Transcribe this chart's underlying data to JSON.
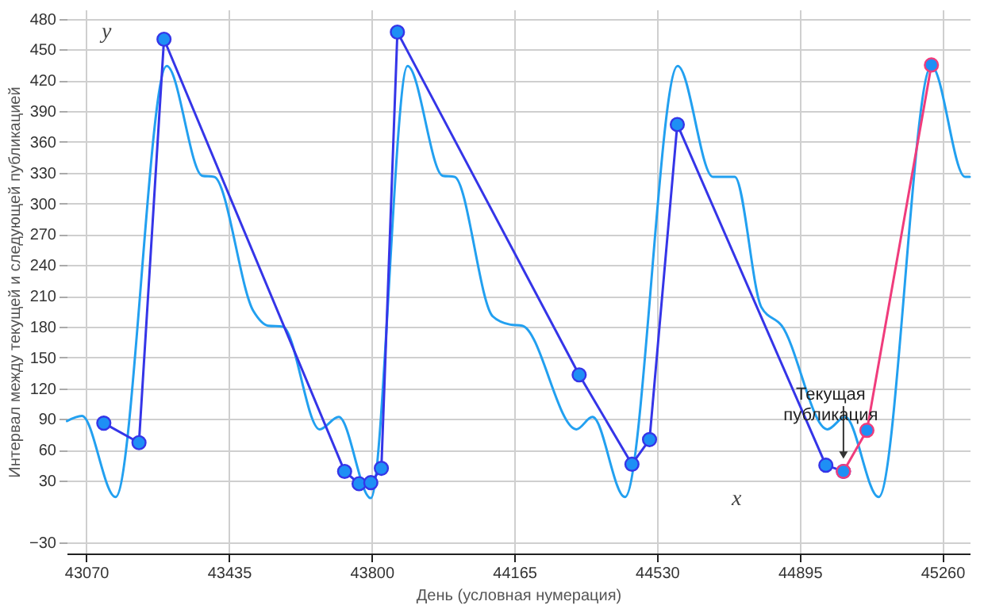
{
  "chart_data": {
    "type": "line",
    "xlabel": "День (условная нумерация)",
    "ylabel": "Интервал между текущей и следующей публикацией",
    "xlim": [
      43020,
      45330
    ],
    "ylim": [
      -41,
      489
    ],
    "xticks": [
      43070,
      43435,
      43800,
      44165,
      44530,
      44895,
      45260
    ],
    "yticks": [
      -30,
      30,
      60,
      90,
      120,
      150,
      180,
      210,
      240,
      270,
      300,
      330,
      360,
      390,
      420,
      450,
      480
    ],
    "grid": true,
    "annotations": [
      "y",
      "x",
      {
        "text": "Текущая публикация",
        "x": 45007,
        "y": 39
      }
    ],
    "series": [
      {
        "color": "#22a0f0",
        "marker": "none",
        "x": [
          43021,
          43059,
          43145,
          43276,
          43367,
          43397,
          43498,
          43535,
          43573,
          43667,
          43716,
          43798,
          43892,
          43982,
          44012,
          44110,
          44155,
          44185,
          44324,
          44365,
          44448,
          44583,
          44673,
          44729,
          44797,
          44849,
          44966,
          45011,
          45097,
          45232,
          45318,
          45330
        ],
        "values": [
          88,
          93,
          14,
          434,
          327,
          326,
          195,
          181,
          180,
          80,
          92,
          13,
          434,
          327,
          326,
          190,
          182,
          181,
          80,
          92,
          14,
          434,
          326,
          326,
          199,
          181,
          80,
          92,
          14,
          434,
          326,
          326
        ]
      },
      {
        "color": "#3535e8",
        "marker": "circle",
        "x": [
          43115,
          43205,
          43269,
          43731,
          43768,
          43798,
          43825,
          43866,
          44331,
          44466,
          44511,
          44582,
          44962,
          45007
        ],
        "values": [
          86,
          67,
          460,
          39,
          27,
          28,
          42,
          467,
          133,
          46,
          70,
          377,
          45,
          39
        ]
      },
      {
        "color": "#f03c7c",
        "marker": "circle",
        "x": [
          45007,
          45067,
          45232
        ],
        "values": [
          39,
          79,
          435
        ]
      }
    ]
  }
}
